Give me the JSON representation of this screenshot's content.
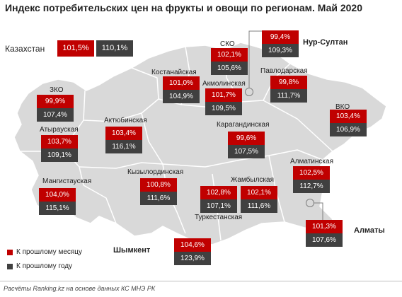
{
  "title": "Индекс потребительских цен на фрукты и овощи по регионам. Май 2020",
  "colors": {
    "month": "#c00000",
    "year": "#404040",
    "map_fill": "#d9d9d9",
    "map_border": "#ffffff"
  },
  "kazakhstan": {
    "label": "Казахстан",
    "month": "101,5%",
    "year": "110,1%"
  },
  "regions": {
    "sko": {
      "label": "СКО",
      "month": "102,1%",
      "year": "105,6%"
    },
    "kostanai": {
      "label": "Костанайская",
      "month": "101,0%",
      "year": "104,9%"
    },
    "akmola": {
      "label": "Акмолинская",
      "month": "101,7%",
      "year": "109,5%"
    },
    "pavlodar": {
      "label": "Павлодарская",
      "month": "99,8%",
      "year": "111,7%"
    },
    "zko": {
      "label": "ЗКО",
      "month": "99,9%",
      "year": "107,4%"
    },
    "vko": {
      "label": "ВКО",
      "month": "103,4%",
      "year": "106,9%"
    },
    "atyrau": {
      "label": "Атырауская",
      "month": "103,7%",
      "year": "109,1%"
    },
    "aktobe": {
      "label": "Актюбинская",
      "month": "103,4%",
      "year": "116,1%"
    },
    "karaganda": {
      "label": "Карагандинская",
      "month": "99,6%",
      "year": "107,5%"
    },
    "mangystau": {
      "label": "Мангистауская",
      "month": "104,0%",
      "year": "115,1%"
    },
    "kyzylorda": {
      "label": "Кызылординская",
      "month": "100,8%",
      "year": "111,6%"
    },
    "almaty_reg": {
      "label": "Алматинская",
      "month": "102,5%",
      "year": "112,7%"
    },
    "zhambyl": {
      "label": "Жамбылская",
      "month": "102,1%",
      "year": "111,6%"
    },
    "turkestan": {
      "label": "Туркестанская",
      "month": "102,8%",
      "year": "107,1%"
    }
  },
  "cities": {
    "nur_sultan": {
      "label": "Нур-Султан",
      "month": "99,4%",
      "year": "109,3%"
    },
    "almaty": {
      "label": "Алматы",
      "month": "101,3%",
      "year": "107,6%"
    },
    "shymkent": {
      "label": "Шымкент",
      "month": "104,6%",
      "year": "123,9%"
    }
  },
  "legend": {
    "month": "К прошлому месяцу",
    "year": "К прошлому году"
  },
  "source": "Расчёты Ranking.kz на основе данных КС МНЭ РК"
}
